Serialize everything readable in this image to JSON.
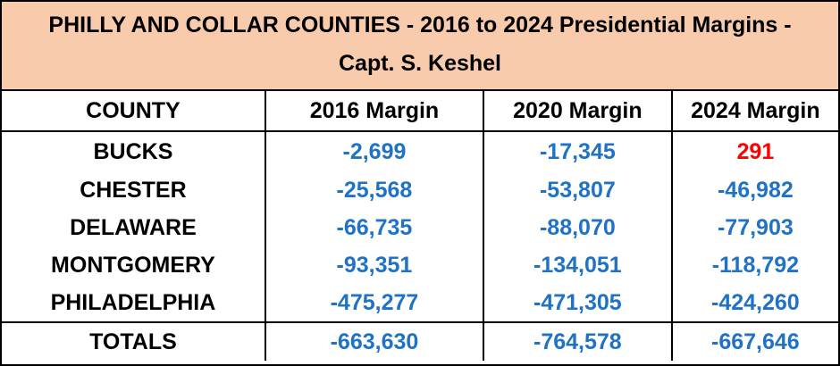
{
  "title": {
    "line1": "PHILLY AND COLLAR COUNTIES -  2016 to 2024 Presidential Margins -",
    "line2": "Capt. S. Keshel"
  },
  "columns": [
    "COUNTY",
    "2016 Margin",
    "2020 Margin",
    "2024 Margin"
  ],
  "rows": [
    {
      "county": "BUCKS",
      "m2016": "-2,699",
      "m2020": "-17,345",
      "m2024": "291"
    },
    {
      "county": "CHESTER",
      "m2016": "-25,568",
      "m2020": "-53,807",
      "m2024": "-46,982"
    },
    {
      "county": "DELAWARE",
      "m2016": "-66,735",
      "m2020": "-88,070",
      "m2024": "-77,903"
    },
    {
      "county": "MONTGOMERY",
      "m2016": "-93,351",
      "m2020": "-134,051",
      "m2024": "-118,792"
    },
    {
      "county": "PHILADELPHIA",
      "m2016": "-475,277",
      "m2020": "-471,305",
      "m2024": "-424,260"
    }
  ],
  "totals": {
    "label": "TOTALS",
    "m2016": "-663,630",
    "m2020": "-764,578",
    "m2024": "-667,646"
  },
  "colors": {
    "header_fill": "#F8CBAD",
    "negative": "#1F72C4",
    "positive": "#FF0000",
    "border": "#000000"
  }
}
